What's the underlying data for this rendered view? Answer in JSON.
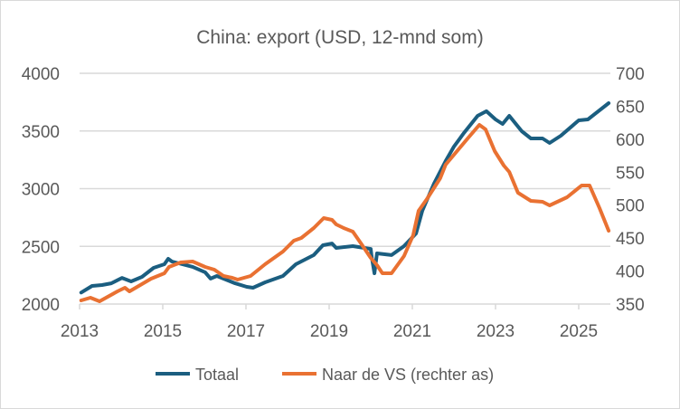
{
  "chart_data": {
    "type": "line",
    "title": "China: export (USD, 12-mnd som)",
    "xlabel": "",
    "ylabel": "",
    "xlim": [
      2013,
      2026
    ],
    "x_ticks": [
      "2013",
      "2015",
      "2017",
      "2019",
      "2021",
      "2023",
      "2025"
    ],
    "ylim_left": [
      2000,
      4000
    ],
    "y_ticks_left": [
      "2000",
      "2500",
      "3000",
      "3500",
      "4000"
    ],
    "ylim_right": [
      350,
      700
    ],
    "y_ticks_right": [
      "350",
      "400",
      "450",
      "500",
      "550",
      "600",
      "650",
      "700"
    ],
    "grid": true,
    "legend_position": "bottom",
    "series": [
      {
        "name": "Totaal",
        "axis": "left",
        "color": "#1b5e80",
        "x": [
          2013.04,
          2013.3,
          2013.54,
          2013.76,
          2014.02,
          2014.24,
          2014.5,
          2014.78,
          2015.04,
          2015.13,
          2015.22,
          2015.72,
          2016.02,
          2016.15,
          2016.3,
          2016.74,
          2017.02,
          2017.17,
          2017.46,
          2017.89,
          2018.2,
          2018.63,
          2018.85,
          2019.07,
          2019.17,
          2019.57,
          2020.0,
          2020.02,
          2020.09,
          2020.15,
          2020.5,
          2020.8,
          2021.09,
          2021.24,
          2021.52,
          2021.8,
          2022.0,
          2022.24,
          2022.57,
          2022.78,
          2023.0,
          2023.17,
          2023.33,
          2023.63,
          2023.85,
          2024.13,
          2024.3,
          2024.57,
          2025.0,
          2025.22,
          2025.72
        ],
        "values": [
          2100,
          2157,
          2165,
          2180,
          2227,
          2196,
          2235,
          2314,
          2345,
          2392,
          2369,
          2322,
          2275,
          2220,
          2243,
          2180,
          2149,
          2141,
          2188,
          2243,
          2345,
          2424,
          2510,
          2525,
          2486,
          2502,
          2478,
          2416,
          2267,
          2439,
          2424,
          2502,
          2612,
          2808,
          3043,
          3239,
          3365,
          3482,
          3631,
          3671,
          3600,
          3561,
          3631,
          3498,
          3435,
          3435,
          3396,
          3459,
          3592,
          3600,
          3741
        ]
      },
      {
        "name": "Naar de VS (rechter as)",
        "axis": "right",
        "color": "#e97132",
        "x": [
          2013.04,
          2013.26,
          2013.48,
          2013.91,
          2014.09,
          2014.2,
          2014.72,
          2015.04,
          2015.15,
          2015.43,
          2015.72,
          2016.02,
          2016.24,
          2016.46,
          2016.67,
          2016.8,
          2017.11,
          2017.46,
          2017.89,
          2018.15,
          2018.33,
          2018.63,
          2018.87,
          2019.07,
          2019.17,
          2019.35,
          2019.57,
          2019.78,
          2020.0,
          2020.15,
          2020.28,
          2020.5,
          2020.8,
          2021.02,
          2021.15,
          2021.35,
          2021.67,
          2021.8,
          2022.11,
          2022.33,
          2022.61,
          2022.76,
          2022.98,
          2023.2,
          2023.33,
          2023.54,
          2023.85,
          2024.13,
          2024.3,
          2024.72,
          2025.07,
          2025.26,
          2025.5,
          2025.72
        ],
        "values": [
          355.5,
          359.6,
          354.1,
          369.2,
          374.7,
          369.2,
          388.4,
          396.7,
          406.3,
          413.1,
          414.5,
          406.3,
          402.2,
          392.5,
          389.8,
          387.1,
          392.5,
          410.4,
          429.6,
          446.1,
          450.2,
          465.3,
          480.4,
          477.6,
          470.8,
          465.3,
          459.8,
          440.6,
          420.0,
          409.0,
          396.7,
          396.7,
          422.7,
          454.3,
          491.4,
          509.2,
          540.8,
          561.4,
          584.7,
          601.2,
          621.8,
          614.9,
          582.0,
          560.0,
          550.4,
          518.8,
          506.5,
          505.1,
          499.6,
          512.0,
          529.8,
          529.8,
          495.5,
          461.2
        ]
      }
    ]
  }
}
